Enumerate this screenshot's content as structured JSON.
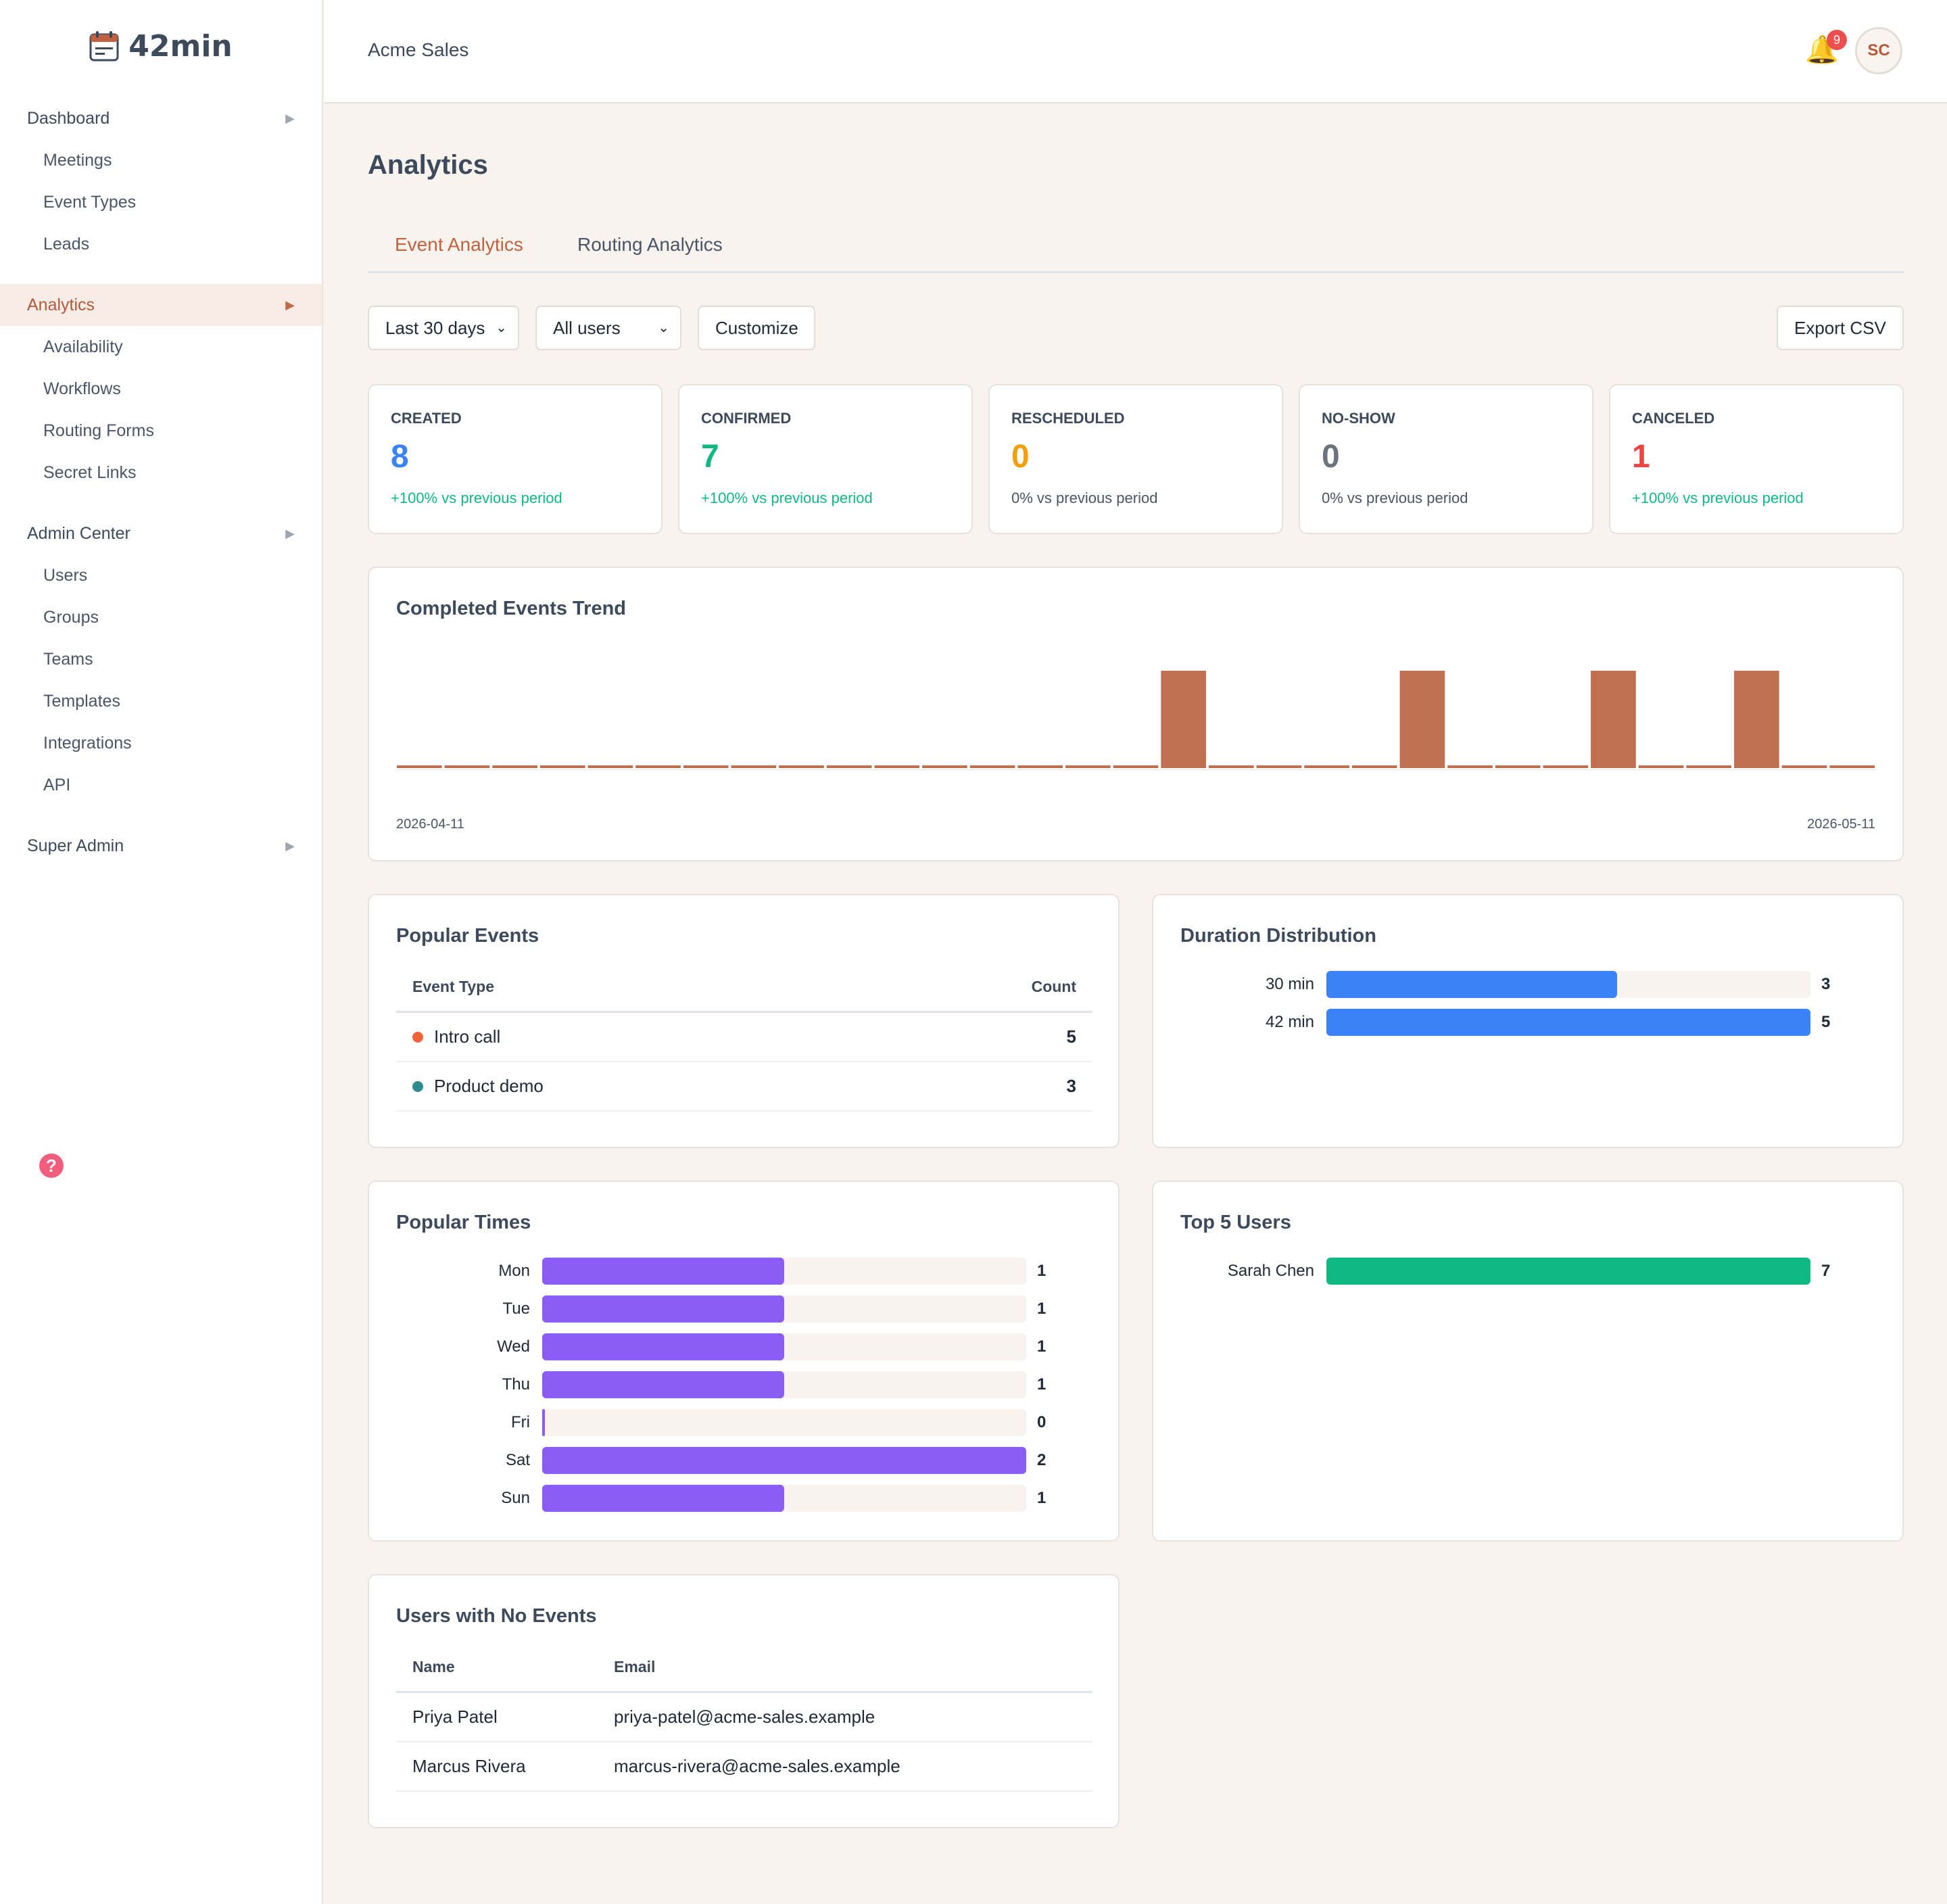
{
  "app": {
    "logo_text": "42min"
  },
  "sidebar": {
    "items": [
      {
        "label": "Dashboard",
        "type": "top"
      },
      {
        "label": "Meetings",
        "type": "sub"
      },
      {
        "label": "Event Types",
        "type": "sub"
      },
      {
        "label": "Leads",
        "type": "sub"
      },
      {
        "label": "Analytics",
        "type": "top",
        "active": true
      },
      {
        "label": "Availability",
        "type": "sub"
      },
      {
        "label": "Workflows",
        "type": "sub"
      },
      {
        "label": "Routing Forms",
        "type": "sub"
      },
      {
        "label": "Secret Links",
        "type": "sub"
      },
      {
        "label": "Admin Center",
        "type": "top"
      },
      {
        "label": "Users",
        "type": "sub"
      },
      {
        "label": "Groups",
        "type": "sub"
      },
      {
        "label": "Teams",
        "type": "sub"
      },
      {
        "label": "Templates",
        "type": "sub"
      },
      {
        "label": "Integrations",
        "type": "sub"
      },
      {
        "label": "API",
        "type": "sub"
      },
      {
        "label": "Super Admin",
        "type": "top"
      }
    ],
    "arrow": "▶",
    "help_glyph": "?"
  },
  "header": {
    "org_name": "Acme Sales",
    "notification_count": "9",
    "avatar_initials": "SC"
  },
  "main": {
    "title": "Analytics",
    "tabs": [
      {
        "label": "Event Analytics",
        "active": true
      },
      {
        "label": "Routing Analytics",
        "active": false
      }
    ],
    "filters": {
      "date_range": "Last 30 days",
      "users": "All users",
      "customize_label": "Customize",
      "export_label": "Export CSV"
    },
    "kpis": [
      {
        "label": "CREATED",
        "value": "8",
        "change": "+100% vs previous period",
        "value_color": "#3b82f6",
        "change_color": "#10b981"
      },
      {
        "label": "CONFIRMED",
        "value": "7",
        "change": "+100% vs previous period",
        "value_color": "#10b981",
        "change_color": "#10b981"
      },
      {
        "label": "RESCHEDULED",
        "value": "0",
        "change": "0% vs previous period",
        "value_color": "#f59e0b",
        "change_color": "#4a5568"
      },
      {
        "label": "NO-SHOW",
        "value": "0",
        "change": "0% vs previous period",
        "value_color": "#6b7280",
        "change_color": "#4a5568"
      },
      {
        "label": "CANCELED",
        "value": "1",
        "change": "+100% vs previous period",
        "value_color": "#ef4444",
        "change_color": "#10b981"
      }
    ]
  },
  "trend": {
    "title": "Completed Events Trend",
    "start_label": "2026-04-11",
    "end_label": "2026-05-11"
  },
  "popular_events": {
    "title": "Popular Events",
    "col_type": "Event Type",
    "col_count": "Count",
    "rows": [
      {
        "name": "Intro call",
        "count": "5",
        "color": "#f0643a"
      },
      {
        "name": "Product demo",
        "count": "3",
        "color": "#2a8c8c"
      }
    ]
  },
  "duration": {
    "title": "Duration Distribution",
    "color": "#3b82f6",
    "max": 5,
    "rows": [
      {
        "label": "30 min",
        "value": 3,
        "value_text": "3"
      },
      {
        "label": "42 min",
        "value": 5,
        "value_text": "5"
      }
    ]
  },
  "popular_times": {
    "title": "Popular Times",
    "color": "#8b5cf6",
    "max": 2,
    "rows": [
      {
        "label": "Mon",
        "value": 1,
        "value_text": "1"
      },
      {
        "label": "Tue",
        "value": 1,
        "value_text": "1"
      },
      {
        "label": "Wed",
        "value": 1,
        "value_text": "1"
      },
      {
        "label": "Thu",
        "value": 1,
        "value_text": "1"
      },
      {
        "label": "Fri",
        "value": 0,
        "value_text": "0"
      },
      {
        "label": "Sat",
        "value": 2,
        "value_text": "2"
      },
      {
        "label": "Sun",
        "value": 1,
        "value_text": "1"
      }
    ]
  },
  "top_users": {
    "title": "Top 5 Users",
    "color": "#10b981",
    "max": 7,
    "rows": [
      {
        "label": "Sarah Chen",
        "value": 7,
        "value_text": "7"
      }
    ]
  },
  "no_events": {
    "title": "Users with No Events",
    "col_name": "Name",
    "col_email": "Email",
    "rows": [
      {
        "name": "Priya Patel",
        "email": "priya-patel@acme-sales.example"
      },
      {
        "name": "Marcus Rivera",
        "email": "marcus-rivera@acme-sales.example"
      }
    ]
  },
  "chart_data": {
    "type": "bar",
    "title": "Completed Events Trend",
    "xlabel": "",
    "ylabel": "",
    "x_start": "2026-04-11",
    "x_end": "2026-05-11",
    "bar_color": "#c0704f",
    "values": [
      0,
      0,
      0,
      0,
      0,
      0,
      0,
      0,
      0,
      0,
      0,
      0,
      0,
      0,
      0,
      0,
      1,
      0,
      0,
      0,
      0,
      1,
      0,
      0,
      0,
      1,
      0,
      0,
      1,
      0,
      0
    ],
    "ylim": [
      0,
      1
    ]
  }
}
